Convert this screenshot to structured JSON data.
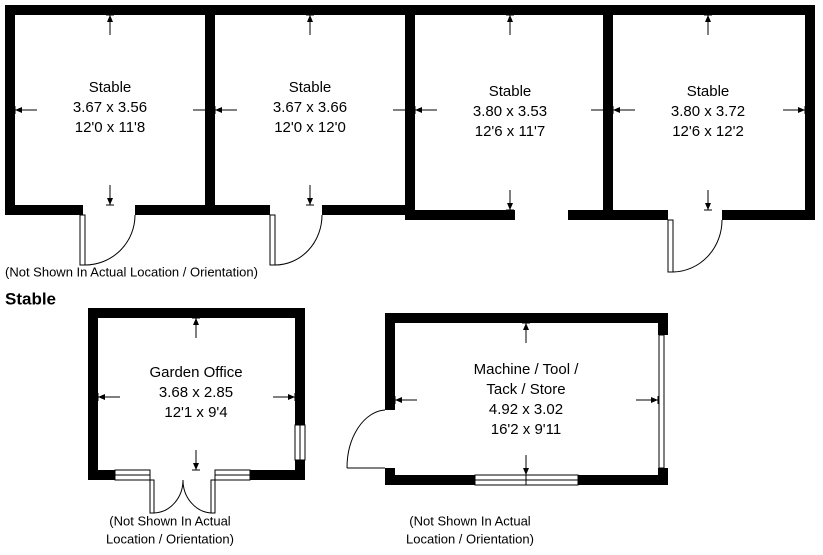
{
  "heading": "Stable",
  "rooms": [
    {
      "name": "Stable",
      "metric": "3.67 x 3.56",
      "imperial": "12'0 x 11'8"
    },
    {
      "name": "Stable",
      "metric": "3.67 x 3.66",
      "imperial": "12'0 x 12'0"
    },
    {
      "name": "Stable",
      "metric": "3.80 x 3.53",
      "imperial": "12'6 x 11'7"
    },
    {
      "name": "Stable",
      "metric": "3.80 x 3.72",
      "imperial": "12'6 x 12'2"
    },
    {
      "name": [
        "Garden Office"
      ],
      "metric": "3.68 x 2.85",
      "imperial": "12'1 x 9'4"
    },
    {
      "name": [
        "Machine / Tool /",
        "Tack / Store"
      ],
      "metric": "4.92 x 3.02",
      "imperial": "16'2 x 9'11"
    }
  ],
  "notes": [
    [
      "(Not Shown In Actual Location / Orientation)"
    ],
    [
      "(Not Shown In Actual",
      "Location / Orientation)"
    ],
    [
      "(Not Shown In Actual",
      "Location / Orientation)"
    ]
  ]
}
